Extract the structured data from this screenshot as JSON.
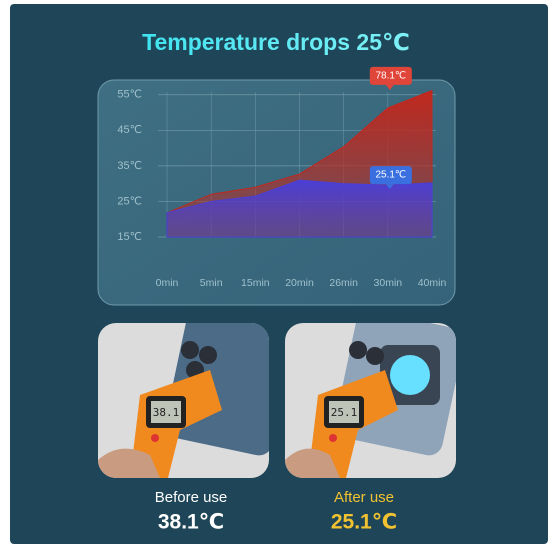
{
  "chart_data": {
    "type": "area",
    "title": "Temperature drops 25℃",
    "categories": [
      "0min",
      "5min",
      "15min",
      "20min",
      "26min",
      "30min",
      "40min"
    ],
    "series": [
      {
        "color": "#c0281e",
        "values": [
          21.8,
          27,
          29,
          32.7,
          40.4,
          51.3,
          56.2
        ]
      },
      {
        "color": "#4a3fd6",
        "values": [
          21.8,
          25,
          26.5,
          31,
          30,
          29.6,
          30.2
        ]
      }
    ],
    "annotations": [
      "78.1℃",
      "25.1℃"
    ],
    "ylim": [
      15,
      60
    ],
    "yticks": [
      {
        "value": 15,
        "label": "15℃"
      },
      {
        "value": 25,
        "label": "25℃"
      },
      {
        "value": 35,
        "label": "35℃"
      },
      {
        "value": 45,
        "label": "45℃"
      },
      {
        "value": 55,
        "label": "55℃"
      }
    ],
    "grid": true
  },
  "captions": {
    "before_label": "Before use",
    "before_value": "38.1℃",
    "after_label": "After use",
    "after_value": "25.1℃"
  }
}
